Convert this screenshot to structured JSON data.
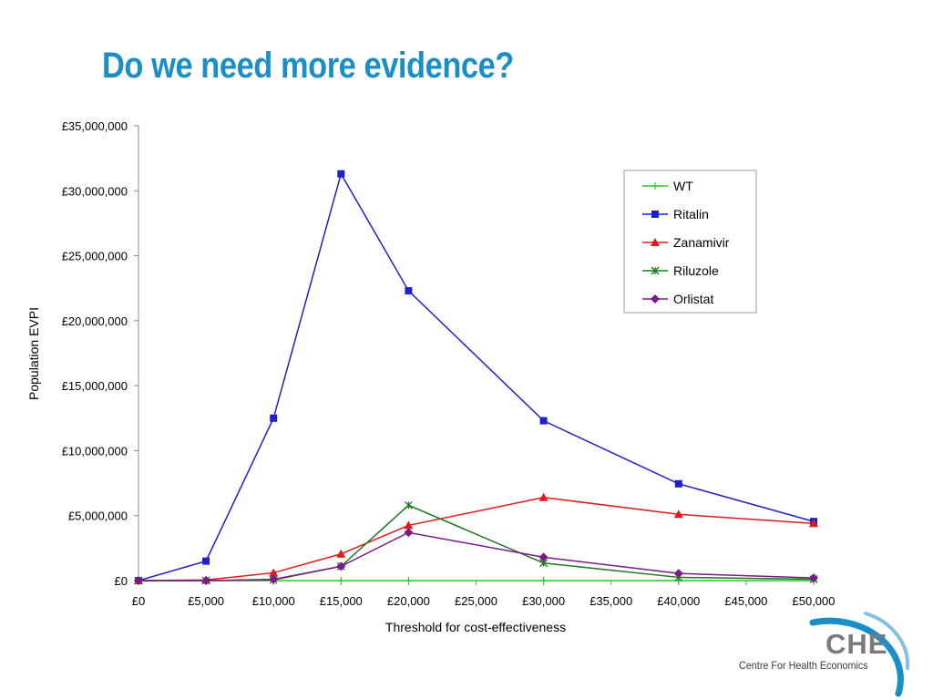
{
  "title": "Do we need more evidence?",
  "chart_data": {
    "type": "line",
    "xlabel": "Threshold for cost-effectiveness",
    "ylabel": "Population EVPI",
    "xlim": [
      0,
      50000
    ],
    "ylim": [
      0,
      35000000
    ],
    "x_ticks": [
      0,
      5000,
      10000,
      15000,
      20000,
      25000,
      30000,
      35000,
      40000,
      45000,
      50000
    ],
    "x_tick_labels": [
      "£0",
      "£5,000",
      "£10,000",
      "£15,000",
      "£20,000",
      "£25,000",
      "£30,000",
      "£35,000",
      "£40,000",
      "£45,000",
      "£50,000"
    ],
    "y_ticks": [
      0,
      5000000,
      10000000,
      15000000,
      20000000,
      25000000,
      30000000,
      35000000
    ],
    "y_tick_labels": [
      "£0",
      "£5,000,000",
      "£10,000,000",
      "£15,000,000",
      "£20,000,000",
      "£25,000,000",
      "£30,000,000",
      "£35,000,000"
    ],
    "grid": false,
    "legend_position": "top-right",
    "x": [
      0,
      5000,
      10000,
      15000,
      20000,
      30000,
      40000,
      50000
    ],
    "series": [
      {
        "name": "WT",
        "color": "#22cc22",
        "marker": "plus",
        "values": [
          0,
          0,
          0,
          0,
          0,
          0,
          0,
          0
        ]
      },
      {
        "name": "Ritalin",
        "color": "#1f1fcc",
        "marker": "square",
        "values": [
          0,
          1500000,
          12500000,
          31300000,
          22300000,
          12300000,
          7450000,
          4550000
        ]
      },
      {
        "name": "Zanamivir",
        "color": "#e01a1a",
        "marker": "triangle",
        "values": [
          0,
          50000,
          600000,
          2050000,
          4250000,
          6400000,
          5100000,
          4400000
        ]
      },
      {
        "name": "Riluzole",
        "color": "#1e7a1e",
        "marker": "star",
        "values": [
          0,
          0,
          50000,
          1100000,
          5800000,
          1350000,
          250000,
          100000
        ]
      },
      {
        "name": "Orlistat",
        "color": "#7a1a8a",
        "marker": "diamond",
        "values": [
          0,
          0,
          100000,
          1100000,
          3700000,
          1800000,
          550000,
          200000
        ]
      }
    ]
  },
  "logo": {
    "mark": "CHE",
    "text": "Centre For Health Economics",
    "ring_color": "#1a8fc7"
  }
}
